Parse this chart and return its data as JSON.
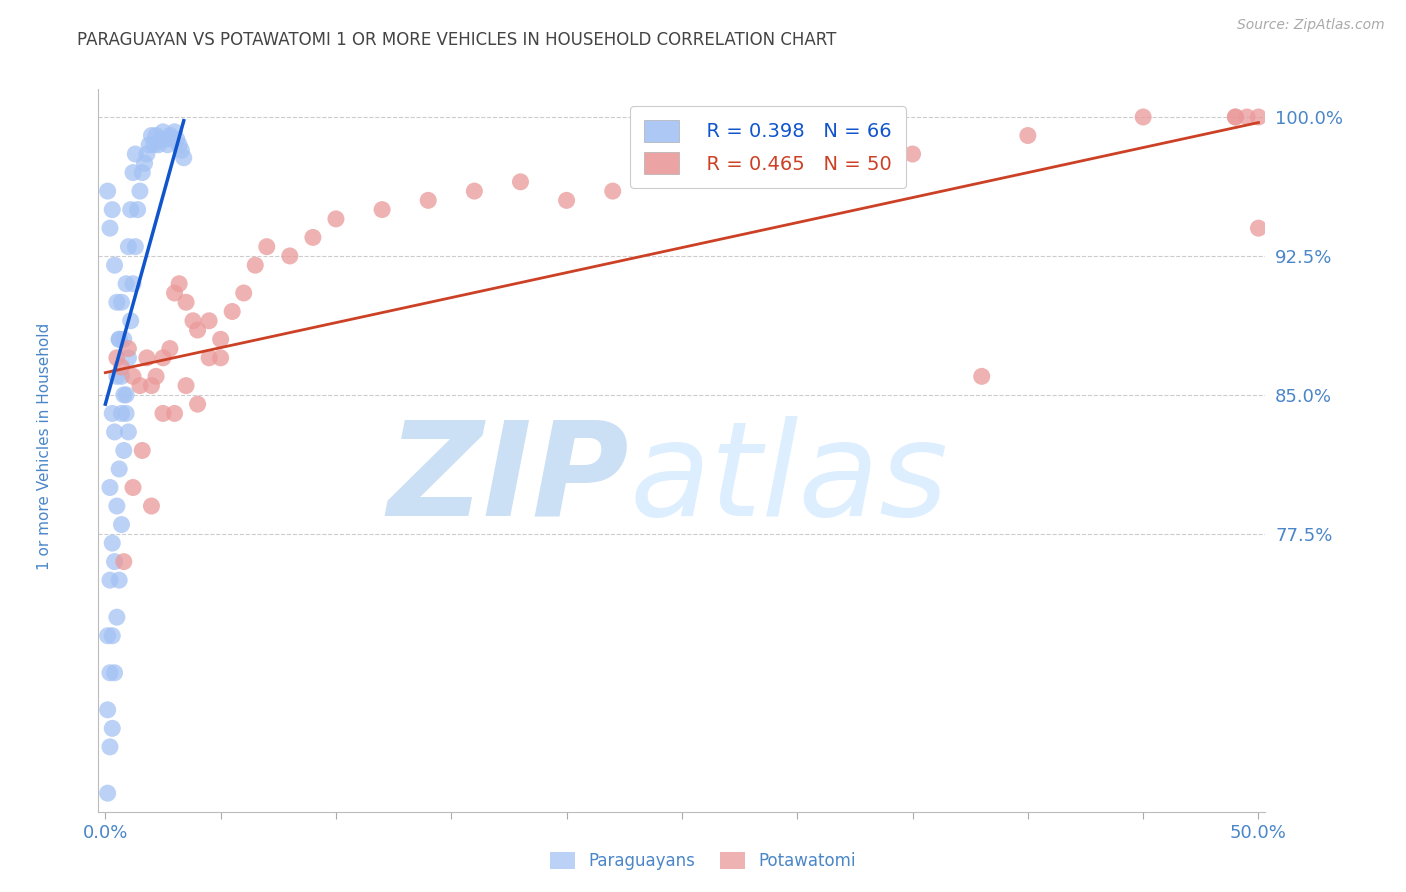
{
  "title": "PARAGUAYAN VS POTAWATOMI 1 OR MORE VEHICLES IN HOUSEHOLD CORRELATION CHART",
  "source": "Source: ZipAtlas.com",
  "xlabel_paraguayans": "Paraguayans",
  "xlabel_potawatomi": "Potawatomi",
  "ylabel": "1 or more Vehicles in Household",
  "xlim": [
    -0.003,
    0.503
  ],
  "ylim": [
    0.625,
    1.015
  ],
  "yticks": [
    0.775,
    0.85,
    0.925,
    1.0
  ],
  "ytick_labels": [
    "77.5%",
    "85.0%",
    "92.5%",
    "100.0%"
  ],
  "xticks": [
    0.0,
    0.05,
    0.1,
    0.15,
    0.2,
    0.25,
    0.3,
    0.35,
    0.4,
    0.45,
    0.5
  ],
  "xtick_labels_show": [
    "0.0%",
    "",
    "",
    "",
    "",
    "",
    "",
    "",
    "",
    "",
    "50.0%"
  ],
  "legend_R_blue": "R = 0.398",
  "legend_N_blue": "N = 66",
  "legend_R_pink": "R = 0.465",
  "legend_N_pink": "N = 50",
  "blue_color": "#a4c2f4",
  "pink_color": "#ea9999",
  "blue_line_color": "#1155cc",
  "pink_line_color": "#cc4125",
  "title_color": "#444444",
  "axis_label_color": "#4a86c8",
  "tick_color": "#4a86c8",
  "source_color": "#aaaaaa",
  "paraguayan_x": [
    0.001,
    0.001,
    0.001,
    0.002,
    0.002,
    0.002,
    0.002,
    0.003,
    0.003,
    0.003,
    0.003,
    0.004,
    0.004,
    0.004,
    0.005,
    0.005,
    0.005,
    0.006,
    0.006,
    0.006,
    0.007,
    0.007,
    0.007,
    0.008,
    0.008,
    0.009,
    0.009,
    0.01,
    0.01,
    0.011,
    0.011,
    0.012,
    0.012,
    0.013,
    0.013,
    0.014,
    0.015,
    0.016,
    0.017,
    0.018,
    0.019,
    0.02,
    0.021,
    0.022,
    0.023,
    0.024,
    0.025,
    0.026,
    0.027,
    0.028,
    0.029,
    0.03,
    0.031,
    0.032,
    0.033,
    0.034,
    0.001,
    0.002,
    0.003,
    0.004,
    0.005,
    0.006,
    0.007,
    0.008,
    0.009,
    0.01
  ],
  "paraguayan_y": [
    0.635,
    0.68,
    0.72,
    0.66,
    0.7,
    0.75,
    0.8,
    0.67,
    0.72,
    0.77,
    0.84,
    0.7,
    0.76,
    0.83,
    0.73,
    0.79,
    0.86,
    0.75,
    0.81,
    0.88,
    0.78,
    0.84,
    0.9,
    0.82,
    0.88,
    0.85,
    0.91,
    0.87,
    0.93,
    0.89,
    0.95,
    0.91,
    0.97,
    0.93,
    0.98,
    0.95,
    0.96,
    0.97,
    0.975,
    0.98,
    0.985,
    0.99,
    0.985,
    0.99,
    0.985,
    0.988,
    0.992,
    0.988,
    0.985,
    0.99,
    0.988,
    0.992,
    0.988,
    0.985,
    0.982,
    0.978,
    0.96,
    0.94,
    0.95,
    0.92,
    0.9,
    0.88,
    0.86,
    0.85,
    0.84,
    0.83
  ],
  "potawatomi_x": [
    0.005,
    0.007,
    0.01,
    0.012,
    0.015,
    0.018,
    0.02,
    0.022,
    0.025,
    0.028,
    0.03,
    0.032,
    0.035,
    0.038,
    0.04,
    0.045,
    0.05,
    0.055,
    0.06,
    0.065,
    0.07,
    0.08,
    0.09,
    0.1,
    0.12,
    0.14,
    0.16,
    0.18,
    0.2,
    0.22,
    0.008,
    0.012,
    0.016,
    0.02,
    0.025,
    0.03,
    0.035,
    0.04,
    0.045,
    0.05,
    0.3,
    0.35,
    0.4,
    0.45,
    0.49,
    0.49,
    0.495,
    0.5,
    0.5,
    0.38
  ],
  "potawatomi_y": [
    0.87,
    0.865,
    0.875,
    0.86,
    0.855,
    0.87,
    0.855,
    0.86,
    0.87,
    0.875,
    0.905,
    0.91,
    0.9,
    0.89,
    0.885,
    0.89,
    0.88,
    0.895,
    0.905,
    0.92,
    0.93,
    0.925,
    0.935,
    0.945,
    0.95,
    0.955,
    0.96,
    0.965,
    0.955,
    0.96,
    0.76,
    0.8,
    0.82,
    0.79,
    0.84,
    0.84,
    0.855,
    0.845,
    0.87,
    0.87,
    0.97,
    0.98,
    0.99,
    1.0,
    1.0,
    1.0,
    1.0,
    1.0,
    0.94,
    0.86
  ],
  "blue_trendline_x": [
    0.0,
    0.034
  ],
  "blue_trendline_y": [
    0.845,
    0.998
  ],
  "pink_trendline_x": [
    0.0,
    0.5
  ],
  "pink_trendline_y": [
    0.862,
    0.997
  ]
}
